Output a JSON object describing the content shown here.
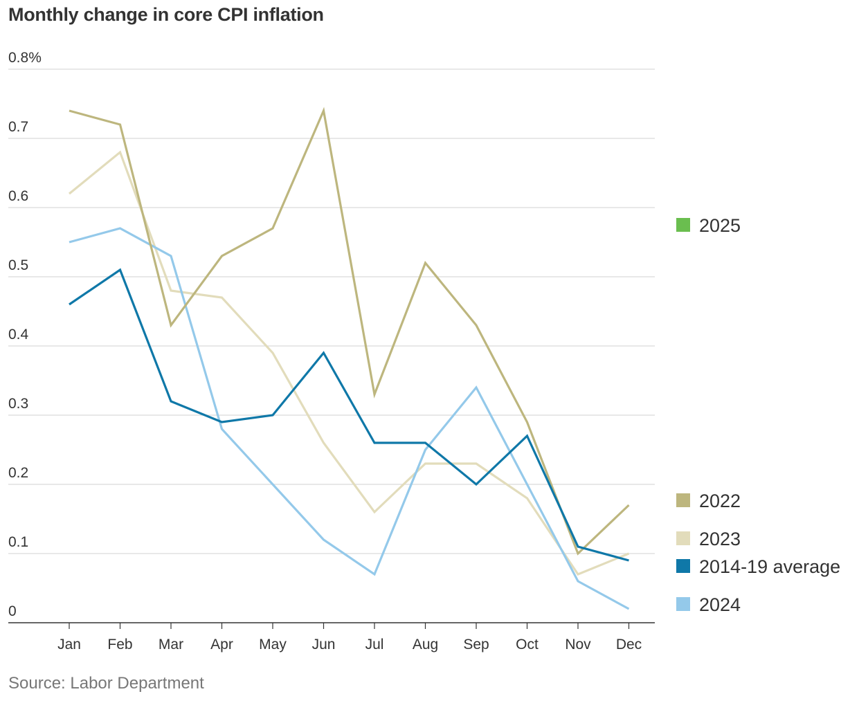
{
  "title": "Monthly change in core CPI inflation",
  "source": "Source: Labor Department",
  "chart_data": {
    "type": "line",
    "title": "Monthly change in core CPI inflation",
    "xlabel": "",
    "ylabel": "",
    "ylim": [
      0,
      0.8
    ],
    "grid": true,
    "legend_position": "right",
    "categories": [
      "Jan",
      "Feb",
      "Mar",
      "Apr",
      "May",
      "Jun",
      "Jul",
      "Aug",
      "Sep",
      "Oct",
      "Nov",
      "Dec"
    ],
    "y_ticks": [
      {
        "value": 0.8,
        "label": "0.8%"
      },
      {
        "value": 0.7,
        "label": "0.7"
      },
      {
        "value": 0.6,
        "label": "0.6"
      },
      {
        "value": 0.5,
        "label": "0.5"
      },
      {
        "value": 0.4,
        "label": "0.4"
      },
      {
        "value": 0.3,
        "label": "0.3"
      },
      {
        "value": 0.2,
        "label": "0.2"
      },
      {
        "value": 0.1,
        "label": "0.1"
      },
      {
        "value": 0,
        "label": "0"
      }
    ],
    "series": [
      {
        "name": "2022",
        "color": "#bdb67e",
        "values": [
          0.74,
          0.72,
          0.43,
          0.53,
          0.57,
          0.74,
          0.33,
          0.52,
          0.43,
          0.29,
          0.1,
          0.17
        ]
      },
      {
        "name": "2023",
        "color": "#e2dcbb",
        "values": [
          0.62,
          0.68,
          0.48,
          0.47,
          0.39,
          0.26,
          0.16,
          0.23,
          0.23,
          0.18,
          0.07,
          0.1
        ]
      },
      {
        "name": "2024",
        "color": "#94c9ea",
        "values": [
          0.55,
          0.57,
          0.53,
          0.28,
          0.2,
          0.12,
          0.07,
          0.25,
          0.34,
          0.2,
          0.06,
          0.02
        ]
      },
      {
        "name": "2014-19 average",
        "color": "#0f78a8",
        "values": [
          0.46,
          0.51,
          0.32,
          0.29,
          0.3,
          0.39,
          0.26,
          0.26,
          0.2,
          0.27,
          0.11,
          0.09
        ]
      }
    ],
    "legend": [
      {
        "label": "2025",
        "color": "#6abe4f",
        "value": null
      },
      {
        "label": "2022",
        "color": "#bdb67e",
        "value": 0.17
      },
      {
        "label": "2023",
        "color": "#e2dcbb",
        "value": 0.1
      },
      {
        "label": "2014-19 average",
        "color": "#0f78a8",
        "value": 0.09
      },
      {
        "label": "2024",
        "color": "#94c9ea",
        "value": 0.02
      }
    ]
  }
}
